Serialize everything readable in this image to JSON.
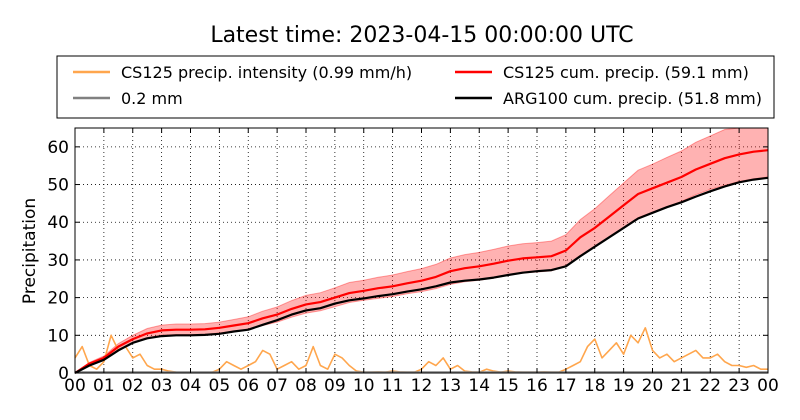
{
  "chart_data": {
    "type": "line",
    "title": "Latest time: 2023-04-15 00:00:00 UTC",
    "xlabel": "",
    "ylabel": "Precipitation",
    "xlim": [
      0,
      24
    ],
    "ylim": [
      0,
      65
    ],
    "grid": true,
    "legend_position": "top",
    "x_tick_labels": [
      "00",
      "01",
      "02",
      "03",
      "04",
      "05",
      "06",
      "07",
      "08",
      "09",
      "10",
      "11",
      "12",
      "13",
      "14",
      "15",
      "16",
      "17",
      "18",
      "19",
      "20",
      "21",
      "22",
      "23",
      "00"
    ],
    "y_ticks": [
      0,
      10,
      20,
      30,
      40,
      50,
      60
    ],
    "legend": [
      {
        "label": "CS125 precip. intensity (0.99 mm/h)",
        "color": "#ffa64d"
      },
      {
        "label": "CS125 cum. precip. (59.1 mm)",
        "color": "#ff0000"
      },
      {
        "label": "0.2 mm",
        "color": "#808080"
      },
      {
        "label": "ARG100 cum. precip. (51.8 mm)",
        "color": "#000000"
      }
    ],
    "series": [
      {
        "name": "CS125 cum. precip. (59.1 mm)",
        "color": "#ff0000",
        "x": [
          0,
          0.5,
          1,
          1.5,
          2,
          2.5,
          3,
          3.5,
          4,
          4.5,
          5,
          5.5,
          6,
          6.5,
          7,
          7.5,
          8,
          8.5,
          9,
          9.5,
          10,
          10.5,
          11,
          11.5,
          12,
          12.5,
          13,
          13.5,
          14,
          14.5,
          15,
          15.5,
          16,
          16.5,
          17,
          17.5,
          18,
          18.5,
          19,
          19.5,
          20,
          20.5,
          21,
          21.5,
          22,
          22.5,
          23,
          23.5,
          24
        ],
        "y": [
          0,
          2.5,
          4,
          7,
          9,
          10.5,
          11.3,
          11.5,
          11.5,
          11.6,
          12,
          12.6,
          13.2,
          14.5,
          15.5,
          17,
          18.2,
          18.8,
          20,
          21.2,
          21.8,
          22.5,
          23,
          23.8,
          24.5,
          25.5,
          27,
          27.8,
          28.3,
          29,
          29.8,
          30.4,
          30.7,
          31,
          32.5,
          36,
          38.5,
          41.5,
          44.5,
          47.5,
          49,
          50.5,
          52,
          54,
          55.5,
          57,
          58,
          58.7,
          59.1
        ],
        "lower": [
          0,
          2.2,
          3.5,
          6.2,
          8,
          9.3,
          10,
          10.2,
          10.2,
          10.3,
          10.6,
          11.1,
          11.6,
          12.6,
          13.5,
          14.8,
          15.9,
          16.5,
          17.6,
          18.7,
          19.3,
          19.8,
          20.3,
          21,
          21.6,
          22.4,
          23.5,
          24.2,
          24.6,
          25.2,
          25.9,
          26.5,
          26.8,
          27.1,
          28.3,
          31.2,
          33.4,
          36,
          38.6,
          41.2,
          42.7,
          44.1,
          45.5,
          47.3,
          48.7,
          49.8,
          50.8,
          51.5,
          52
        ],
        "upper": [
          0,
          2.8,
          4.5,
          7.8,
          10,
          11.8,
          12.7,
          13,
          13,
          13.1,
          13.5,
          14.2,
          14.9,
          16.4,
          17.5,
          19.2,
          20.6,
          21.3,
          22.6,
          24,
          24.6,
          25.4,
          26,
          26.9,
          27.7,
          28.8,
          30.5,
          31.4,
          32,
          32.8,
          33.7,
          34.3,
          34.6,
          35,
          36.7,
          40.7,
          43.6,
          47,
          50.4,
          53.8,
          55.4,
          57.2,
          58.9,
          61.2,
          62.9,
          64.6,
          65.7,
          66.5,
          67
        ]
      },
      {
        "name": "ARG100 cum. precip. (51.8 mm)",
        "color": "#000000",
        "x": [
          0,
          0.5,
          1,
          1.5,
          2,
          2.5,
          3,
          3.5,
          4,
          4.5,
          5,
          5.5,
          6,
          6.5,
          7,
          7.5,
          8,
          8.5,
          9,
          9.5,
          10,
          10.5,
          11,
          11.5,
          12,
          12.5,
          13,
          13.5,
          14,
          14.5,
          15,
          15.5,
          16,
          16.5,
          17,
          17.5,
          18,
          18.5,
          19,
          19.5,
          20,
          20.5,
          21,
          21.5,
          22,
          22.5,
          23,
          23.5,
          24
        ],
        "y": [
          0,
          2,
          3.5,
          6,
          8,
          9.2,
          9.8,
          10,
          10,
          10.1,
          10.4,
          11,
          11.5,
          12.8,
          14,
          15.5,
          16.6,
          17.2,
          18.4,
          19.3,
          19.8,
          20.4,
          20.9,
          21.6,
          22.2,
          23,
          24,
          24.5,
          24.8,
          25.3,
          26,
          26.6,
          27,
          27.3,
          28.3,
          31,
          33.5,
          36,
          38.5,
          41,
          42.5,
          44,
          45.3,
          46.8,
          48.2,
          49.5,
          50.6,
          51.3,
          51.8
        ]
      },
      {
        "name": "0.2 mm",
        "color": "#808080",
        "x": [
          0,
          24
        ],
        "y": [
          0.2,
          0.2
        ]
      },
      {
        "name": "CS125 precip. intensity (0.99 mm/h)",
        "color": "#ffa64d",
        "x": [
          0,
          0.25,
          0.5,
          0.75,
          1,
          1.25,
          1.5,
          1.75,
          2,
          2.25,
          2.5,
          2.75,
          3,
          3.25,
          3.5,
          3.75,
          4,
          4.25,
          4.5,
          4.75,
          5,
          5.25,
          5.5,
          5.75,
          6,
          6.25,
          6.5,
          6.75,
          7,
          7.25,
          7.5,
          7.75,
          8,
          8.25,
          8.5,
          8.75,
          9,
          9.25,
          9.5,
          9.75,
          10,
          10.25,
          10.5,
          10.75,
          11,
          11.25,
          11.5,
          11.75,
          12,
          12.25,
          12.5,
          12.75,
          13,
          13.25,
          13.5,
          13.75,
          14,
          14.25,
          14.5,
          14.75,
          15,
          15.25,
          15.5,
          15.75,
          16,
          16.25,
          16.5,
          16.75,
          17,
          17.25,
          17.5,
          17.75,
          18,
          18.25,
          18.5,
          18.75,
          19,
          19.25,
          19.5,
          19.75,
          20,
          20.25,
          20.5,
          20.75,
          21,
          21.25,
          21.5,
          21.75,
          22,
          22.25,
          22.5,
          22.75,
          23,
          23.25,
          23.5,
          23.75,
          24
        ],
        "y": [
          4,
          7,
          2,
          1,
          3,
          10,
          6,
          7,
          4,
          5,
          2,
          1,
          1,
          0.5,
          0.2,
          0.1,
          0.1,
          0.1,
          0.1,
          0.2,
          1,
          3,
          2,
          1,
          2,
          3,
          6,
          5,
          1,
          2,
          3,
          1,
          2,
          7,
          2,
          1,
          5,
          4,
          2,
          0.5,
          0.2,
          0.2,
          0.3,
          0.2,
          0.5,
          0.3,
          0.2,
          0.2,
          1,
          3,
          2,
          4,
          1,
          2,
          0.5,
          0.3,
          0.2,
          1,
          0.5,
          0.2,
          0.5,
          0.3,
          0.2,
          0.2,
          0.2,
          0.3,
          0.2,
          0.2,
          1,
          2,
          3,
          7,
          9,
          4,
          6,
          8,
          5,
          10,
          8,
          12,
          6,
          4,
          5,
          3,
          4,
          5,
          6,
          4,
          4,
          5,
          3,
          2,
          2,
          1.5,
          2,
          1,
          1
        ]
      }
    ]
  }
}
